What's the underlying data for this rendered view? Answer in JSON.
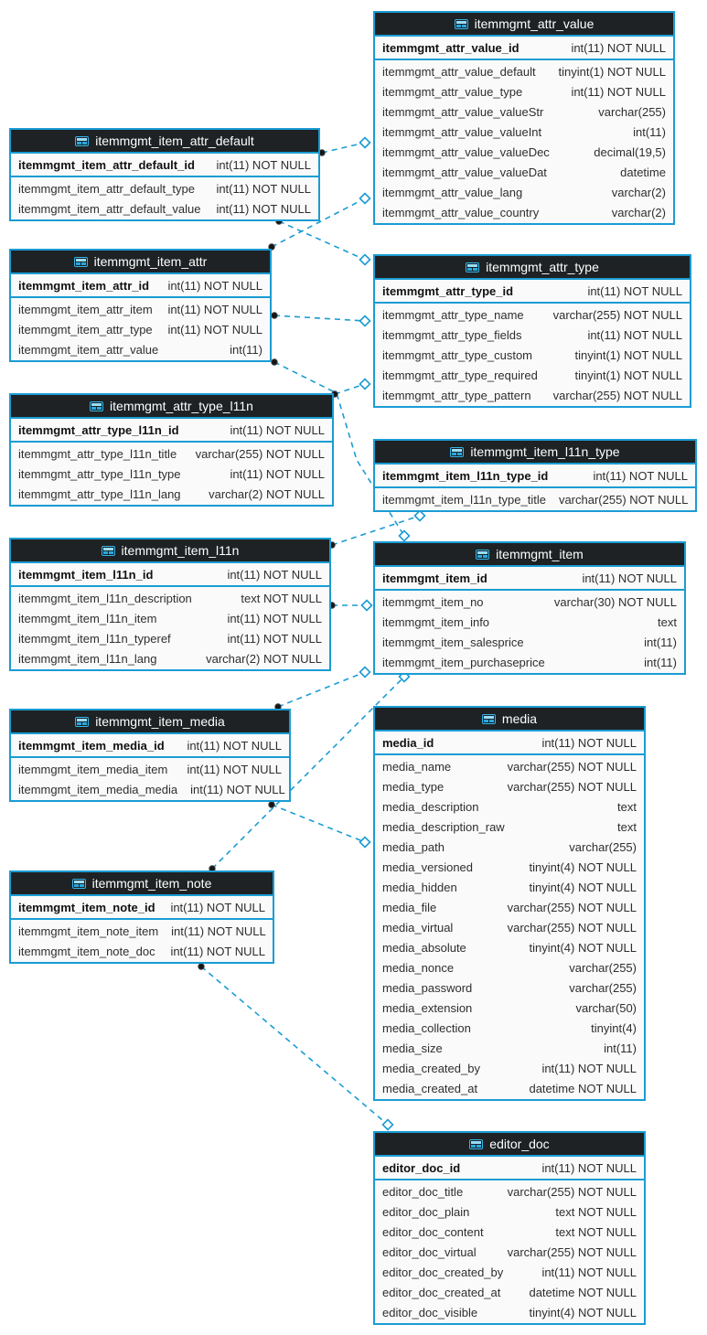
{
  "colors": {
    "accent": "#1a9cd4",
    "header_bg": "#1e2224",
    "body_bg": "#fafafa"
  },
  "diagram": {
    "tables": [
      {
        "name": "itemmgmt_attr_value",
        "pk": {
          "name": "itemmgmt_attr_value_id",
          "type": "int(11) NOT NULL"
        },
        "fields": [
          {
            "name": "itemmgmt_attr_value_default",
            "type": "tinyint(1) NOT NULL"
          },
          {
            "name": "itemmgmt_attr_value_type",
            "type": "int(11) NOT NULL"
          },
          {
            "name": "itemmgmt_attr_value_valueStr",
            "type": "varchar(255)"
          },
          {
            "name": "itemmgmt_attr_value_valueInt",
            "type": "int(11)"
          },
          {
            "name": "itemmgmt_attr_value_valueDec",
            "type": "decimal(19,5)"
          },
          {
            "name": "itemmgmt_attr_value_valueDat",
            "type": "datetime"
          },
          {
            "name": "itemmgmt_attr_value_lang",
            "type": "varchar(2)"
          },
          {
            "name": "itemmgmt_attr_value_country",
            "type": "varchar(2)"
          }
        ]
      },
      {
        "name": "itemmgmt_item_attr_default",
        "pk": {
          "name": "itemmgmt_item_attr_default_id",
          "type": "int(11) NOT NULL"
        },
        "fields": [
          {
            "name": "itemmgmt_item_attr_default_type",
            "type": "int(11) NOT NULL"
          },
          {
            "name": "itemmgmt_item_attr_default_value",
            "type": "int(11) NOT NULL"
          }
        ]
      },
      {
        "name": "itemmgmt_item_attr",
        "pk": {
          "name": "itemmgmt_item_attr_id",
          "type": "int(11) NOT NULL"
        },
        "fields": [
          {
            "name": "itemmgmt_item_attr_item",
            "type": "int(11) NOT NULL"
          },
          {
            "name": "itemmgmt_item_attr_type",
            "type": "int(11) NOT NULL"
          },
          {
            "name": "itemmgmt_item_attr_value",
            "type": "int(11)"
          }
        ]
      },
      {
        "name": "itemmgmt_attr_type",
        "pk": {
          "name": "itemmgmt_attr_type_id",
          "type": "int(11) NOT NULL"
        },
        "fields": [
          {
            "name": "itemmgmt_attr_type_name",
            "type": "varchar(255) NOT NULL"
          },
          {
            "name": "itemmgmt_attr_type_fields",
            "type": "int(11) NOT NULL"
          },
          {
            "name": "itemmgmt_attr_type_custom",
            "type": "tinyint(1) NOT NULL"
          },
          {
            "name": "itemmgmt_attr_type_required",
            "type": "tinyint(1) NOT NULL"
          },
          {
            "name": "itemmgmt_attr_type_pattern",
            "type": "varchar(255) NOT NULL"
          }
        ]
      },
      {
        "name": "itemmgmt_attr_type_l11n",
        "pk": {
          "name": "itemmgmt_attr_type_l11n_id",
          "type": "int(11) NOT NULL"
        },
        "fields": [
          {
            "name": "itemmgmt_attr_type_l11n_title",
            "type": "varchar(255) NOT NULL"
          },
          {
            "name": "itemmgmt_attr_type_l11n_type",
            "type": "int(11) NOT NULL"
          },
          {
            "name": "itemmgmt_attr_type_l11n_lang",
            "type": "varchar(2) NOT NULL"
          }
        ]
      },
      {
        "name": "itemmgmt_item_l11n_type",
        "pk": {
          "name": "itemmgmt_item_l11n_type_id",
          "type": "int(11) NOT NULL"
        },
        "fields": [
          {
            "name": "itemmgmt_item_l11n_type_title",
            "type": "varchar(255) NOT NULL"
          }
        ]
      },
      {
        "name": "itemmgmt_item_l11n",
        "pk": {
          "name": "itemmgmt_item_l11n_id",
          "type": "int(11) NOT NULL"
        },
        "fields": [
          {
            "name": "itemmgmt_item_l11n_description",
            "type": "text NOT NULL"
          },
          {
            "name": "itemmgmt_item_l11n_item",
            "type": "int(11) NOT NULL"
          },
          {
            "name": "itemmgmt_item_l11n_typeref",
            "type": "int(11) NOT NULL"
          },
          {
            "name": "itemmgmt_item_l11n_lang",
            "type": "varchar(2) NOT NULL"
          }
        ]
      },
      {
        "name": "itemmgmt_item",
        "pk": {
          "name": "itemmgmt_item_id",
          "type": "int(11) NOT NULL"
        },
        "fields": [
          {
            "name": "itemmgmt_item_no",
            "type": "varchar(30) NOT NULL"
          },
          {
            "name": "itemmgmt_item_info",
            "type": "text"
          },
          {
            "name": "itemmgmt_item_salesprice",
            "type": "int(11)"
          },
          {
            "name": "itemmgmt_item_purchaseprice",
            "type": "int(11)"
          }
        ]
      },
      {
        "name": "itemmgmt_item_media",
        "pk": {
          "name": "itemmgmt_item_media_id",
          "type": "int(11) NOT NULL"
        },
        "fields": [
          {
            "name": "itemmgmt_item_media_item",
            "type": "int(11) NOT NULL"
          },
          {
            "name": "itemmgmt_item_media_media",
            "type": "int(11) NOT NULL"
          }
        ]
      },
      {
        "name": "media",
        "pk": {
          "name": "media_id",
          "type": "int(11) NOT NULL"
        },
        "fields": [
          {
            "name": "media_name",
            "type": "varchar(255) NOT NULL"
          },
          {
            "name": "media_type",
            "type": "varchar(255) NOT NULL"
          },
          {
            "name": "media_description",
            "type": "text"
          },
          {
            "name": "media_description_raw",
            "type": "text"
          },
          {
            "name": "media_path",
            "type": "varchar(255)"
          },
          {
            "name": "media_versioned",
            "type": "tinyint(4) NOT NULL"
          },
          {
            "name": "media_hidden",
            "type": "tinyint(4) NOT NULL"
          },
          {
            "name": "media_file",
            "type": "varchar(255) NOT NULL"
          },
          {
            "name": "media_virtual",
            "type": "varchar(255) NOT NULL"
          },
          {
            "name": "media_absolute",
            "type": "tinyint(4) NOT NULL"
          },
          {
            "name": "media_nonce",
            "type": "varchar(255)"
          },
          {
            "name": "media_password",
            "type": "varchar(255)"
          },
          {
            "name": "media_extension",
            "type": "varchar(50)"
          },
          {
            "name": "media_collection",
            "type": "tinyint(4)"
          },
          {
            "name": "media_size",
            "type": "int(11)"
          },
          {
            "name": "media_created_by",
            "type": "int(11) NOT NULL"
          },
          {
            "name": "media_created_at",
            "type": "datetime NOT NULL"
          }
        ]
      },
      {
        "name": "itemmgmt_item_note",
        "pk": {
          "name": "itemmgmt_item_note_id",
          "type": "int(11) NOT NULL"
        },
        "fields": [
          {
            "name": "itemmgmt_item_note_item",
            "type": "int(11) NOT NULL"
          },
          {
            "name": "itemmgmt_item_note_doc",
            "type": "int(11) NOT NULL"
          }
        ]
      },
      {
        "name": "editor_doc",
        "pk": {
          "name": "editor_doc_id",
          "type": "int(11) NOT NULL"
        },
        "fields": [
          {
            "name": "editor_doc_title",
            "type": "varchar(255) NOT NULL"
          },
          {
            "name": "editor_doc_plain",
            "type": "text NOT NULL"
          },
          {
            "name": "editor_doc_content",
            "type": "text NOT NULL"
          },
          {
            "name": "editor_doc_virtual",
            "type": "varchar(255) NOT NULL"
          },
          {
            "name": "editor_doc_created_by",
            "type": "int(11) NOT NULL"
          },
          {
            "name": "editor_doc_created_at",
            "type": "datetime NOT NULL"
          },
          {
            "name": "editor_doc_visible",
            "type": "tinyint(4) NOT NULL"
          }
        ]
      }
    ],
    "relationships": [
      {
        "from": "itemmgmt_item_attr_default",
        "to": "itemmgmt_attr_value"
      },
      {
        "from": "itemmgmt_item_attr_default",
        "to": "itemmgmt_attr_type"
      },
      {
        "from": "itemmgmt_item_attr",
        "to": "itemmgmt_attr_value"
      },
      {
        "from": "itemmgmt_item_attr",
        "to": "itemmgmt_attr_type"
      },
      {
        "from": "itemmgmt_item_attr",
        "to": "itemmgmt_item"
      },
      {
        "from": "itemmgmt_attr_type_l11n",
        "to": "itemmgmt_attr_type"
      },
      {
        "from": "itemmgmt_item_l11n",
        "to": "itemmgmt_item_l11n_type"
      },
      {
        "from": "itemmgmt_item_l11n",
        "to": "itemmgmt_item"
      },
      {
        "from": "itemmgmt_item_media",
        "to": "itemmgmt_item"
      },
      {
        "from": "itemmgmt_item_note",
        "to": "itemmgmt_item"
      },
      {
        "from": "itemmgmt_item_media",
        "to": "media"
      },
      {
        "from": "itemmgmt_item_note",
        "to": "editor_doc"
      }
    ]
  }
}
